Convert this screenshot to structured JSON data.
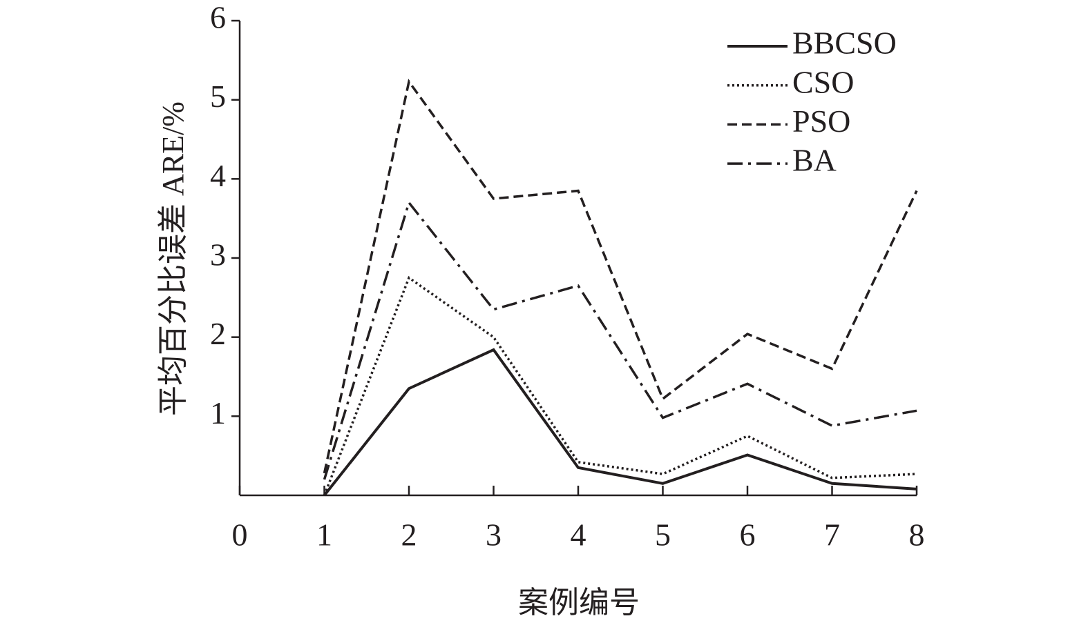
{
  "chart_data": {
    "type": "line",
    "x_label": "案例编号",
    "y_label": "平均百分比误差 ARE/%",
    "x": [
      1,
      2,
      3,
      4,
      5,
      6,
      7,
      8
    ],
    "series": [
      {
        "name": "BBCSO",
        "color": "#231f20",
        "dash": "solid",
        "values": [
          0,
          1.35,
          1.84,
          0.35,
          0.15,
          0.51,
          0.15,
          0.08
        ]
      },
      {
        "name": "CSO",
        "color": "#231f20",
        "dash": "dotted",
        "values": [
          0,
          2.75,
          2.0,
          0.42,
          0.27,
          0.75,
          0.22,
          0.27
        ]
      },
      {
        "name": "PSO",
        "color": "#231f20",
        "dash": "dashed",
        "values": [
          0.28,
          5.23,
          3.75,
          3.85,
          1.22,
          2.04,
          1.6,
          3.85
        ]
      },
      {
        "name": "BA",
        "color": "#231f20",
        "dash": "dashdot",
        "values": [
          0.2,
          3.7,
          2.35,
          2.65,
          0.98,
          1.41,
          0.88,
          1.07
        ]
      }
    ],
    "xlim": [
      0,
      8
    ],
    "xticks": [
      0,
      1,
      2,
      3,
      4,
      5,
      6,
      7,
      8
    ],
    "ylim": [
      0,
      6
    ],
    "yticks": [
      1,
      2,
      3,
      4,
      5,
      6
    ],
    "grid": false,
    "legend": "upper right"
  }
}
